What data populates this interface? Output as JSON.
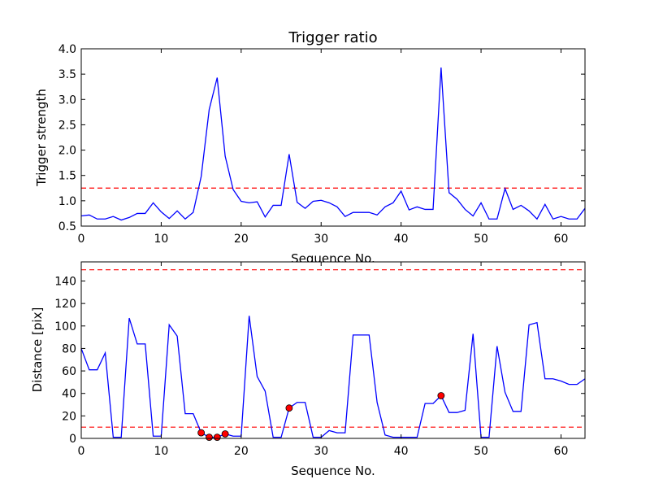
{
  "chart_data": [
    {
      "type": "line",
      "title": "Trigger ratio",
      "xlabel": "Sequence No.",
      "ylabel": "Trigger strength",
      "xlim": [
        0,
        63
      ],
      "ylim": [
        0.5,
        4.0
      ],
      "xticks": [
        "0",
        "10",
        "20",
        "30",
        "40",
        "50",
        "60"
      ],
      "yticks": [
        "0.5",
        "1.0",
        "1.5",
        "2.0",
        "2.5",
        "3.0",
        "3.5",
        "4.0"
      ],
      "series": [
        {
          "color": "#0000ff",
          "x": [
            0,
            1,
            2,
            3,
            4,
            5,
            6,
            7,
            8,
            9,
            10,
            11,
            12,
            13,
            14,
            15,
            16,
            17,
            18,
            19,
            20,
            21,
            22,
            23,
            24,
            25,
            26,
            27,
            28,
            29,
            30,
            31,
            32,
            33,
            34,
            35,
            36,
            37,
            38,
            39,
            40,
            41,
            42,
            43,
            44,
            45,
            46,
            47,
            48,
            49,
            50,
            51,
            52,
            53,
            54,
            55,
            56,
            57,
            58,
            59,
            60,
            61,
            62,
            63
          ],
          "y": [
            0.7,
            0.72,
            0.64,
            0.64,
            0.69,
            0.62,
            0.67,
            0.75,
            0.75,
            0.96,
            0.78,
            0.65,
            0.8,
            0.64,
            0.77,
            1.48,
            2.8,
            3.43,
            1.88,
            1.22,
            0.99,
            0.96,
            0.98,
            0.68,
            0.91,
            0.91,
            1.92,
            0.97,
            0.85,
            0.99,
            1.01,
            0.96,
            0.88,
            0.69,
            0.77,
            0.77,
            0.77,
            0.72,
            0.88,
            0.96,
            1.19,
            0.82,
            0.88,
            0.83,
            0.83,
            3.63,
            1.16,
            1.03,
            0.83,
            0.7,
            0.96,
            0.64,
            0.64,
            1.24,
            0.83,
            0.91,
            0.8,
            0.64,
            0.93,
            0.64,
            0.69,
            0.64,
            0.64,
            0.85
          ]
        }
      ],
      "hlines": [
        {
          "y": 1.25,
          "color": "#ff0000",
          "style": "dashed"
        }
      ]
    },
    {
      "type": "line",
      "title": "",
      "xlabel": "Sequence No.",
      "ylabel": "Distance [pix]",
      "xlim": [
        0,
        63
      ],
      "ylim": [
        0,
        157
      ],
      "xticks": [
        "0",
        "10",
        "20",
        "30",
        "40",
        "50",
        "60"
      ],
      "yticks": [
        "0",
        "20",
        "40",
        "60",
        "80",
        "100",
        "120",
        "140"
      ],
      "series": [
        {
          "color": "#0000ff",
          "x": [
            0,
            1,
            2,
            3,
            4,
            5,
            6,
            7,
            8,
            9,
            10,
            11,
            12,
            13,
            14,
            15,
            16,
            17,
            18,
            19,
            20,
            21,
            22,
            23,
            24,
            25,
            26,
            27,
            28,
            29,
            30,
            31,
            32,
            33,
            34,
            35,
            36,
            37,
            38,
            39,
            40,
            41,
            42,
            43,
            44,
            45,
            46,
            47,
            48,
            49,
            50,
            51,
            52,
            53,
            54,
            55,
            56,
            57,
            58,
            59,
            60,
            61,
            62,
            63
          ],
          "y": [
            80,
            61,
            61,
            76,
            1,
            1,
            107,
            84,
            84,
            2,
            2,
            101,
            91,
            22,
            22,
            5,
            1,
            1,
            4,
            2,
            2,
            109,
            55,
            42,
            1,
            1,
            27,
            32,
            32,
            1,
            1,
            7,
            5,
            5,
            92,
            92,
            92,
            32,
            3,
            1,
            1,
            1,
            1,
            31,
            31,
            38,
            23,
            23,
            25,
            93,
            1,
            1,
            82,
            41,
            24,
            24,
            101,
            103,
            53,
            53,
            51,
            48,
            48,
            53
          ]
        },
        {
          "type": "scatter",
          "color": "#ff0000",
          "x": [
            15,
            16,
            17,
            18,
            26,
            45
          ],
          "y": [
            5,
            1,
            1,
            4,
            27,
            38
          ]
        }
      ],
      "hlines": [
        {
          "y": 150,
          "color": "#ff0000",
          "style": "dashed"
        },
        {
          "y": 10,
          "color": "#ff0000",
          "style": "dashed"
        }
      ]
    }
  ]
}
